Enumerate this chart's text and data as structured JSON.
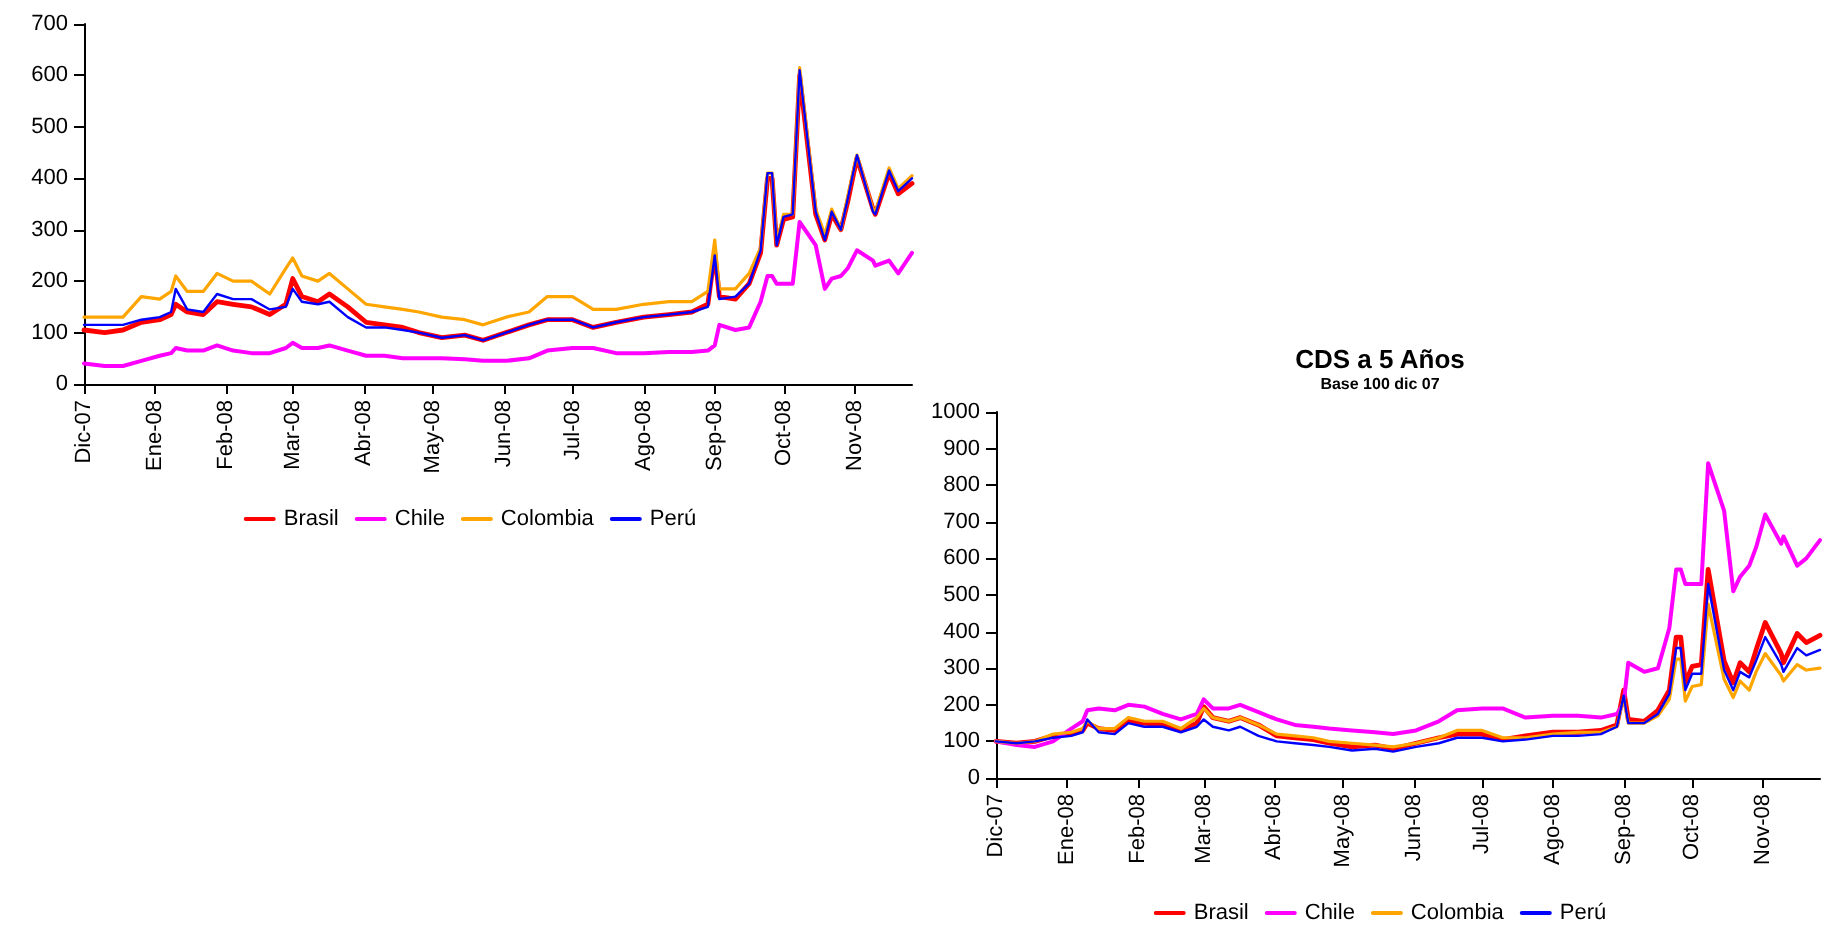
{
  "chart_data": [
    {
      "type": "line",
      "x": [
        "2007-12-01",
        "2007-12-10",
        "2007-12-18",
        "2007-12-26",
        "2008-01-03",
        "2008-01-08",
        "2008-01-10",
        "2008-01-15",
        "2008-01-22",
        "2008-01-28",
        "2008-02-04",
        "2008-02-12",
        "2008-02-20",
        "2008-02-27",
        "2008-03-01",
        "2008-03-05",
        "2008-03-12",
        "2008-03-17",
        "2008-03-25",
        "2008-04-02",
        "2008-04-10",
        "2008-04-18",
        "2008-04-25",
        "2008-05-05",
        "2008-05-15",
        "2008-05-23",
        "2008-06-02",
        "2008-06-12",
        "2008-06-20",
        "2008-07-01",
        "2008-07-10",
        "2008-07-20",
        "2008-08-01",
        "2008-08-12",
        "2008-08-22",
        "2008-08-29",
        "2008-09-01",
        "2008-09-03",
        "2008-09-10",
        "2008-09-16",
        "2008-09-21",
        "2008-09-24",
        "2008-09-26",
        "2008-09-28",
        "2008-10-01",
        "2008-10-05",
        "2008-10-08",
        "2008-10-15",
        "2008-10-19",
        "2008-10-22",
        "2008-10-26",
        "2008-10-29",
        "2008-11-02",
        "2008-11-09",
        "2008-11-10",
        "2008-11-16",
        "2008-11-20",
        "2008-11-26"
      ],
      "series": [
        {
          "name": "Brasil",
          "color": "#ff0000",
          "values": [
            105,
            100,
            105,
            120,
            125,
            135,
            155,
            140,
            135,
            160,
            155,
            150,
            135,
            155,
            205,
            170,
            160,
            175,
            150,
            120,
            115,
            110,
            100,
            90,
            95,
            85,
            100,
            115,
            125,
            125,
            110,
            120,
            130,
            135,
            140,
            155,
            255,
            170,
            165,
            195,
            255,
            400,
            400,
            270,
            320,
            325,
            600,
            330,
            280,
            330,
            300,
            355,
            440,
            340,
            330,
            410,
            370,
            390
          ]
        },
        {
          "name": "Chile",
          "color": "#ff00ff",
          "values": [
            40,
            35,
            35,
            45,
            55,
            60,
            70,
            65,
            65,
            75,
            65,
            60,
            60,
            70,
            80,
            70,
            70,
            75,
            65,
            55,
            55,
            50,
            50,
            50,
            48,
            45,
            45,
            50,
            65,
            70,
            70,
            60,
            60,
            62,
            62,
            65,
            75,
            115,
            105,
            110,
            160,
            210,
            210,
            195,
            195,
            195,
            315,
            270,
            185,
            205,
            210,
            225,
            260,
            240,
            230,
            240,
            215,
            255
          ]
        },
        {
          "name": "Colombia",
          "color": "#ffa500",
          "values": [
            130,
            130,
            130,
            170,
            165,
            180,
            210,
            180,
            180,
            215,
            200,
            200,
            175,
            225,
            245,
            210,
            200,
            215,
            185,
            155,
            150,
            145,
            140,
            130,
            125,
            115,
            130,
            140,
            170,
            170,
            145,
            145,
            155,
            160,
            160,
            180,
            280,
            185,
            185,
            215,
            265,
            410,
            410,
            275,
            330,
            330,
            615,
            340,
            290,
            340,
            300,
            365,
            445,
            340,
            335,
            420,
            380,
            405
          ]
        },
        {
          "name": "Perú",
          "color": "#0000ff",
          "values": [
            115,
            115,
            115,
            125,
            130,
            140,
            185,
            145,
            140,
            175,
            165,
            165,
            145,
            150,
            185,
            160,
            155,
            160,
            130,
            110,
            110,
            105,
            100,
            90,
            95,
            85,
            100,
            115,
            125,
            125,
            110,
            120,
            130,
            135,
            140,
            150,
            250,
            165,
            170,
            195,
            260,
            410,
            410,
            270,
            325,
            330,
            610,
            335,
            280,
            335,
            300,
            360,
            445,
            335,
            330,
            415,
            375,
            400
          ]
        }
      ],
      "xlim": [
        "2007-12-01",
        "2008-11-26"
      ],
      "xticks": [
        {
          "value": "2007-12-01",
          "label": "Dic-07"
        },
        {
          "value": "2008-01-01",
          "label": "Ene-08"
        },
        {
          "value": "2008-02-01",
          "label": "Feb-08"
        },
        {
          "value": "2008-03-01",
          "label": "Mar-08"
        },
        {
          "value": "2008-04-01",
          "label": "Abr-08"
        },
        {
          "value": "2008-05-01",
          "label": "May-08"
        },
        {
          "value": "2008-06-01",
          "label": "Jun-08"
        },
        {
          "value": "2008-07-01",
          "label": "Jul-08"
        },
        {
          "value": "2008-08-01",
          "label": "Ago-08"
        },
        {
          "value": "2008-09-01",
          "label": "Sep-08"
        },
        {
          "value": "2008-10-01",
          "label": "Oct-08"
        },
        {
          "value": "2008-11-01",
          "label": "Nov-08"
        }
      ],
      "ylim": [
        0,
        700
      ],
      "yticks": [
        0,
        100,
        200,
        300,
        400,
        500,
        600,
        700
      ],
      "grid": false,
      "legend": "bottom",
      "marker": "none",
      "line_style": "solid"
    },
    {
      "type": "line",
      "title": "CDS a 5 Años",
      "subtitle": "Base 100 dic 07",
      "x": [
        "2007-12-01",
        "2007-12-10",
        "2007-12-18",
        "2007-12-26",
        "2008-01-03",
        "2008-01-08",
        "2008-01-10",
        "2008-01-15",
        "2008-01-22",
        "2008-01-28",
        "2008-02-04",
        "2008-02-12",
        "2008-02-20",
        "2008-02-27",
        "2008-03-01",
        "2008-03-05",
        "2008-03-12",
        "2008-03-17",
        "2008-03-25",
        "2008-04-02",
        "2008-04-10",
        "2008-04-18",
        "2008-04-25",
        "2008-05-05",
        "2008-05-15",
        "2008-05-23",
        "2008-06-02",
        "2008-06-12",
        "2008-06-20",
        "2008-07-01",
        "2008-07-10",
        "2008-07-20",
        "2008-08-01",
        "2008-08-12",
        "2008-08-22",
        "2008-08-29",
        "2008-09-01",
        "2008-09-03",
        "2008-09-10",
        "2008-09-16",
        "2008-09-21",
        "2008-09-24",
        "2008-09-26",
        "2008-09-28",
        "2008-10-01",
        "2008-10-05",
        "2008-10-08",
        "2008-10-15",
        "2008-10-19",
        "2008-10-22",
        "2008-10-26",
        "2008-10-29",
        "2008-11-02",
        "2008-11-09",
        "2008-11-10",
        "2008-11-16",
        "2008-11-20",
        "2008-11-26"
      ],
      "series": [
        {
          "name": "Brasil",
          "color": "#ff0000",
          "values": [
            100,
            95,
            100,
            115,
            120,
            130,
            150,
            135,
            130,
            155,
            150,
            145,
            130,
            150,
            195,
            165,
            155,
            165,
            145,
            115,
            110,
            105,
            95,
            85,
            90,
            80,
            95,
            110,
            120,
            120,
            105,
            115,
            125,
            125,
            130,
            145,
            240,
            160,
            155,
            185,
            240,
            385,
            385,
            260,
            305,
            310,
            570,
            320,
            260,
            315,
            290,
            350,
            425,
            340,
            315,
            395,
            370,
            390
          ]
        },
        {
          "name": "Chile",
          "color": "#ff00ff",
          "values": [
            100,
            90,
            85,
            100,
            135,
            155,
            185,
            190,
            185,
            200,
            195,
            175,
            160,
            175,
            215,
            190,
            190,
            200,
            180,
            160,
            145,
            140,
            135,
            130,
            125,
            120,
            130,
            155,
            185,
            190,
            190,
            165,
            170,
            170,
            165,
            175,
            205,
            315,
            290,
            300,
            410,
            570,
            570,
            530,
            530,
            530,
            860,
            730,
            510,
            550,
            580,
            630,
            720,
            640,
            660,
            580,
            600,
            650
          ]
        },
        {
          "name": "Colombia",
          "color": "#ffa500",
          "values": [
            100,
            95,
            100,
            120,
            125,
            135,
            155,
            135,
            135,
            165,
            155,
            155,
            135,
            165,
            190,
            165,
            155,
            165,
            145,
            120,
            115,
            110,
            100,
            95,
            90,
            85,
            95,
            110,
            130,
            130,
            110,
            110,
            120,
            125,
            125,
            140,
            220,
            150,
            150,
            170,
            215,
            325,
            325,
            210,
            250,
            255,
            475,
            270,
            220,
            265,
            240,
            290,
            340,
            280,
            265,
            310,
            295,
            300
          ]
        },
        {
          "name": "Perú",
          "color": "#0000ff",
          "values": [
            100,
            95,
            100,
            110,
            115,
            125,
            160,
            125,
            120,
            150,
            140,
            140,
            125,
            140,
            160,
            140,
            130,
            140,
            115,
            100,
            95,
            90,
            85,
            75,
            80,
            72,
            85,
            95,
            110,
            110,
            100,
            105,
            115,
            115,
            120,
            140,
            225,
            150,
            150,
            175,
            230,
            355,
            355,
            240,
            285,
            285,
            530,
            295,
            240,
            290,
            275,
            320,
            385,
            310,
            290,
            355,
            335,
            350
          ]
        }
      ],
      "xlim": [
        "2007-12-01",
        "2008-11-26"
      ],
      "xticks": [
        {
          "value": "2007-12-01",
          "label": "Dic-07"
        },
        {
          "value": "2008-01-01",
          "label": "Ene-08"
        },
        {
          "value": "2008-02-01",
          "label": "Feb-08"
        },
        {
          "value": "2008-03-01",
          "label": "Mar-08"
        },
        {
          "value": "2008-04-01",
          "label": "Abr-08"
        },
        {
          "value": "2008-05-01",
          "label": "May-08"
        },
        {
          "value": "2008-06-01",
          "label": "Jun-08"
        },
        {
          "value": "2008-07-01",
          "label": "Jul-08"
        },
        {
          "value": "2008-08-01",
          "label": "Ago-08"
        },
        {
          "value": "2008-09-01",
          "label": "Sep-08"
        },
        {
          "value": "2008-10-01",
          "label": "Oct-08"
        },
        {
          "value": "2008-11-01",
          "label": "Nov-08"
        }
      ],
      "ylim": [
        0,
        1000
      ],
      "yticks": [
        0,
        100,
        200,
        300,
        400,
        500,
        600,
        700,
        800,
        900,
        1000
      ],
      "grid": false,
      "legend": "bottom",
      "marker": "none",
      "line_style": "solid"
    }
  ]
}
